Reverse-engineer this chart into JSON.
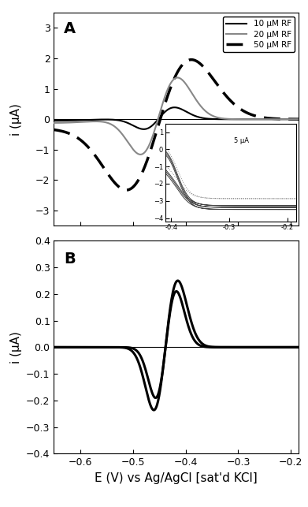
{
  "panel_A": {
    "label": "A",
    "xlim": [
      -0.65,
      -0.185
    ],
    "ylim": [
      -3.5,
      3.5
    ],
    "yticks": [
      -3,
      -2,
      -1,
      0,
      1,
      2,
      3
    ],
    "xticks": [
      -0.6,
      -0.5,
      -0.4,
      -0.3,
      -0.2
    ],
    "ylabel": "i (μA)",
    "legend": [
      "10 μM RF",
      "20 μM RF",
      "50 μM RF"
    ]
  },
  "panel_B": {
    "label": "B",
    "xlim": [
      -0.65,
      -0.185
    ],
    "ylim": [
      -0.4,
      0.4
    ],
    "yticks": [
      -0.4,
      -0.3,
      -0.2,
      -0.1,
      0.0,
      0.1,
      0.2,
      0.3,
      0.4
    ],
    "xticks": [
      -0.6,
      -0.5,
      -0.4,
      -0.3,
      -0.2
    ],
    "ylabel": "i (μA)",
    "xlabel": "E (V) vs Ag/AgCl [sat'd KCl]"
  },
  "background_color": "#ffffff"
}
